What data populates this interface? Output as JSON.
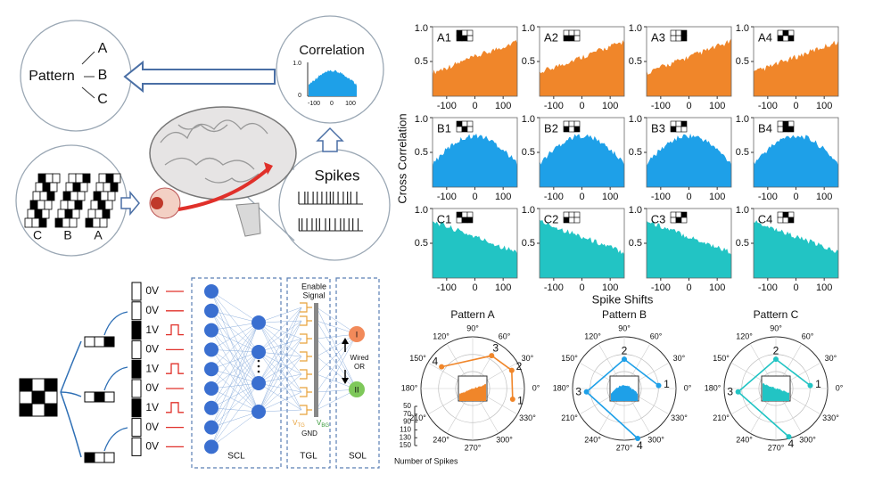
{
  "overview": {
    "pattern_label": "Pattern",
    "branches": [
      "A",
      "B",
      "C"
    ],
    "correlation_title": "Correlation",
    "correlation_yticks": [
      "1.0",
      "0"
    ],
    "correlation_xticks": [
      "-100",
      "0",
      "100"
    ],
    "spikes_title": "Spikes",
    "input_letters": [
      "C",
      "B",
      "A"
    ]
  },
  "network": {
    "voltages": [
      "0V",
      "0V",
      "1V",
      "0V",
      "1V",
      "0V",
      "1V",
      "0V",
      "0V"
    ],
    "layers": [
      "SCL",
      "TGL",
      "SOL"
    ],
    "enable_signal": [
      "Enable",
      "Signal"
    ],
    "wired_or": [
      "Wired",
      "OR"
    ],
    "vtg": {
      "base": "V",
      "sub": "TG"
    },
    "vbg": {
      "base": "V",
      "sub": "BG"
    },
    "gnd": "GND",
    "outputs": [
      "I",
      "II"
    ]
  },
  "correlations": {
    "y_title": "Cross Correlation",
    "x_title": "Spike Shifts",
    "xlim": [
      -150,
      150
    ],
    "ylim": [
      0,
      1
    ],
    "xticks": [
      -100,
      0,
      100
    ],
    "yticks": [
      {
        "value": 1,
        "label": "1.0"
      },
      0.5
    ],
    "panels": [
      {
        "label": "A1",
        "color": "#f0862a",
        "shape": "rising"
      },
      {
        "label": "A2",
        "color": "#f0862a",
        "shape": "rising"
      },
      {
        "label": "A3",
        "color": "#f0862a",
        "shape": "rising"
      },
      {
        "label": "A4",
        "color": "#f0862a",
        "shape": "rising"
      },
      {
        "label": "B1",
        "color": "#1ea0e8",
        "shape": "dome"
      },
      {
        "label": "B2",
        "color": "#1ea0e8",
        "shape": "dome"
      },
      {
        "label": "B3",
        "color": "#1ea0e8",
        "shape": "dome"
      },
      {
        "label": "B4",
        "color": "#1ea0e8",
        "shape": "dome"
      },
      {
        "label": "C1",
        "color": "#22c4c4",
        "shape": "falling"
      },
      {
        "label": "C2",
        "color": "#22c4c4",
        "shape": "falling"
      },
      {
        "label": "C3",
        "color": "#22c4c4",
        "shape": "falling"
      },
      {
        "label": "C4",
        "color": "#22c4c4",
        "shape": "falling"
      }
    ]
  },
  "polar": {
    "radial_title": "Number of Spikes",
    "rlim": [
      0,
      150
    ],
    "rticks": [
      50,
      70,
      90,
      110,
      130,
      150
    ],
    "angle_ticks": [
      {
        "value": 90,
        "label": "90°"
      },
      {
        "value": 60,
        "label": "60°"
      },
      {
        "value": 30,
        "label": "30°"
      },
      {
        "value": 0,
        "label": "0°"
      },
      {
        "value": 330,
        "label": "330°"
      },
      {
        "value": 300,
        "label": "300°"
      },
      {
        "value": 270,
        "label": "270°"
      },
      {
        "value": 240,
        "label": "240°"
      },
      {
        "value": 210,
        "label": "210°"
      },
      {
        "value": 180,
        "label": "180°"
      },
      {
        "value": 150,
        "label": "150°"
      },
      {
        "value": 120,
        "label": "120°"
      }
    ],
    "plots": [
      {
        "title": "Pattern A",
        "color": "#f0862a",
        "shape": "rising",
        "points": [
          {
            "label": "1",
            "angle": 345,
            "r": 120
          },
          {
            "label": "2",
            "angle": 25,
            "r": 125
          },
          {
            "label": "3",
            "angle": 60,
            "r": 110
          },
          {
            "label": "4",
            "angle": 145,
            "r": 110
          }
        ]
      },
      {
        "title": "Pattern B",
        "color": "#1ea0e8",
        "shape": "dome",
        "points": [
          {
            "label": "1",
            "angle": 5,
            "r": 100
          },
          {
            "label": "2",
            "angle": 90,
            "r": 85
          },
          {
            "label": "3",
            "angle": 185,
            "r": 110
          },
          {
            "label": "4",
            "angle": 285,
            "r": 150
          }
        ]
      },
      {
        "title": "Pattern C",
        "color": "#22c4c4",
        "shape": "falling",
        "points": [
          {
            "label": "1",
            "angle": 5,
            "r": 100
          },
          {
            "label": "2",
            "angle": 90,
            "r": 85
          },
          {
            "label": "3",
            "angle": 185,
            "r": 110
          },
          {
            "label": "4",
            "angle": 285,
            "r": 145
          }
        ]
      }
    ]
  }
}
